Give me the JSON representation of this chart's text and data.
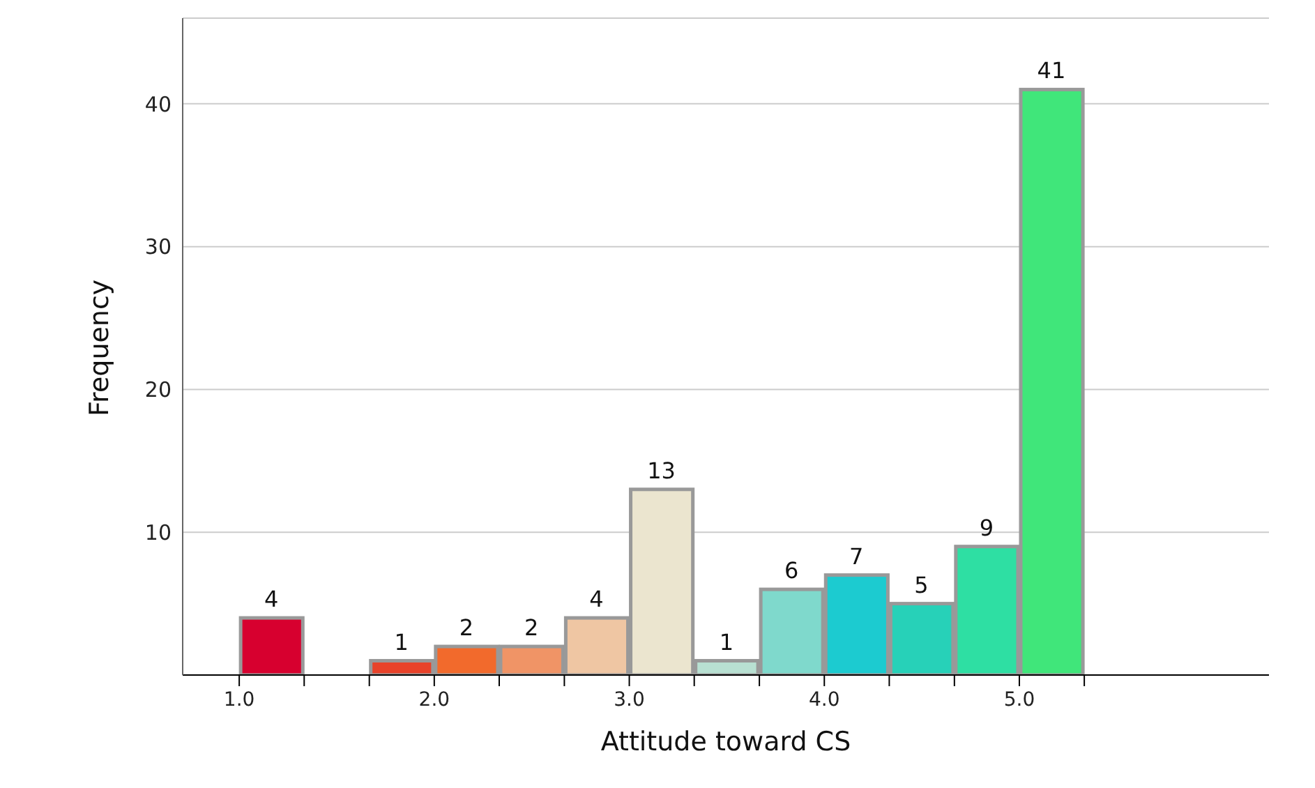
{
  "chart_data": {
    "type": "histogram",
    "xlabel": "Attitude toward CS",
    "ylabel": "Frequency",
    "bins": [
      1,
      1.333,
      1.667,
      2,
      2.333,
      2.667,
      3,
      3.333,
      3.667,
      4,
      4.333,
      4.667,
      5,
      5.333
    ],
    "values": [
      4,
      0,
      1,
      2,
      2,
      4,
      13,
      1,
      6,
      7,
      5,
      9,
      41
    ],
    "colors": [
      "#d7002f",
      "#ffffff",
      "#e8432a",
      "#f26a2c",
      "#f09466",
      "#efc6a3",
      "#ebe5cf",
      "#b8e0d2",
      "#7fd9cc",
      "#1ccbd0",
      "#27d1b8",
      "#2edfa3",
      "#40e67a"
    ],
    "value_labels": [
      "4",
      null,
      "1",
      "2",
      "2",
      "4",
      "13",
      "1",
      "6",
      "7",
      "5",
      "9",
      "41"
    ],
    "xlim": [
      0.71,
      6.28
    ],
    "xticks": [
      {
        "value": 1,
        "label": "1.0"
      },
      {
        "value": 1.333,
        "label": null
      },
      {
        "value": 1.667,
        "label": null
      },
      {
        "value": 2,
        "label": "2.0"
      },
      {
        "value": 2.333,
        "label": null
      },
      {
        "value": 2.667,
        "label": null
      },
      {
        "value": 3,
        "label": "3.0"
      },
      {
        "value": 3.333,
        "label": null
      },
      {
        "value": 3.667,
        "label": null
      },
      {
        "value": 4,
        "label": "4.0"
      },
      {
        "value": 4.333,
        "label": null
      },
      {
        "value": 4.667,
        "label": null
      },
      {
        "value": 5,
        "label": "5.0"
      },
      {
        "value": 5.333,
        "label": null
      }
    ],
    "ylim": [
      0,
      46
    ],
    "yticks": [
      10,
      20,
      30,
      40
    ],
    "grid": "y"
  }
}
